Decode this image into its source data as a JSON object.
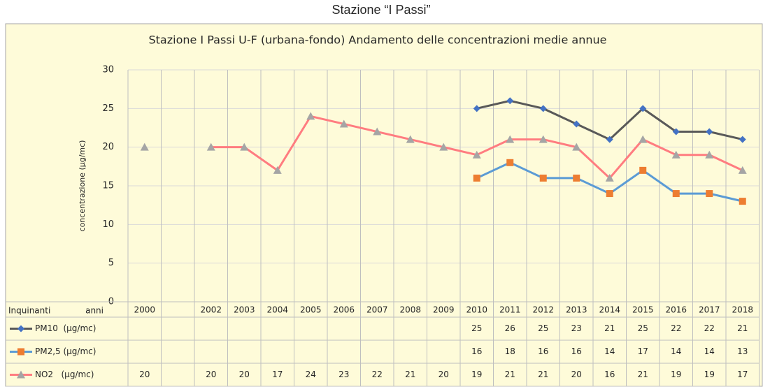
{
  "caption": "Stazione “I Passi”",
  "chart_data": {
    "type": "line",
    "title": "Stazione I Passi U-F (urbana-fondo) Andamento delle concentrazioni medie annue",
    "y_label": "concentrazione (μg/mc)",
    "table_header": [
      "Inquinanti",
      "anni"
    ],
    "categories": [
      "2000",
      null,
      "2002",
      "2003",
      "2004",
      "2005",
      "2006",
      "2007",
      "2008",
      "2009",
      "2010",
      "2011",
      "2012",
      "2013",
      "2014",
      "2015",
      "2016",
      "2017",
      "2018"
    ],
    "series": [
      {
        "name": "PM10  (μg/mc)",
        "color": "#595959",
        "marker": "diamond",
        "marker_color": "#4472c4",
        "values": [
          null,
          null,
          null,
          null,
          null,
          null,
          null,
          null,
          null,
          null,
          25,
          26,
          25,
          23,
          21,
          25,
          22,
          22,
          21
        ]
      },
      {
        "name": "PM2,5 (μg/mc)",
        "color": "#5b9bd5",
        "marker": "square",
        "marker_color": "#ed7d31",
        "values": [
          null,
          null,
          null,
          null,
          null,
          null,
          null,
          null,
          null,
          null,
          16,
          18,
          16,
          16,
          14,
          17,
          14,
          14,
          13
        ]
      },
      {
        "name": "NO2   (μg/mc)",
        "color": "#ff7c80",
        "marker": "triangle",
        "marker_color": "#a5a5a5",
        "values": [
          20,
          null,
          20,
          20,
          17,
          24,
          23,
          22,
          21,
          20,
          19,
          21,
          21,
          20,
          16,
          21,
          19,
          19,
          17
        ]
      }
    ],
    "ylim": [
      0,
      30
    ],
    "yticks": [
      0,
      5,
      10,
      15,
      20,
      25,
      30
    ],
    "grid": true
  }
}
